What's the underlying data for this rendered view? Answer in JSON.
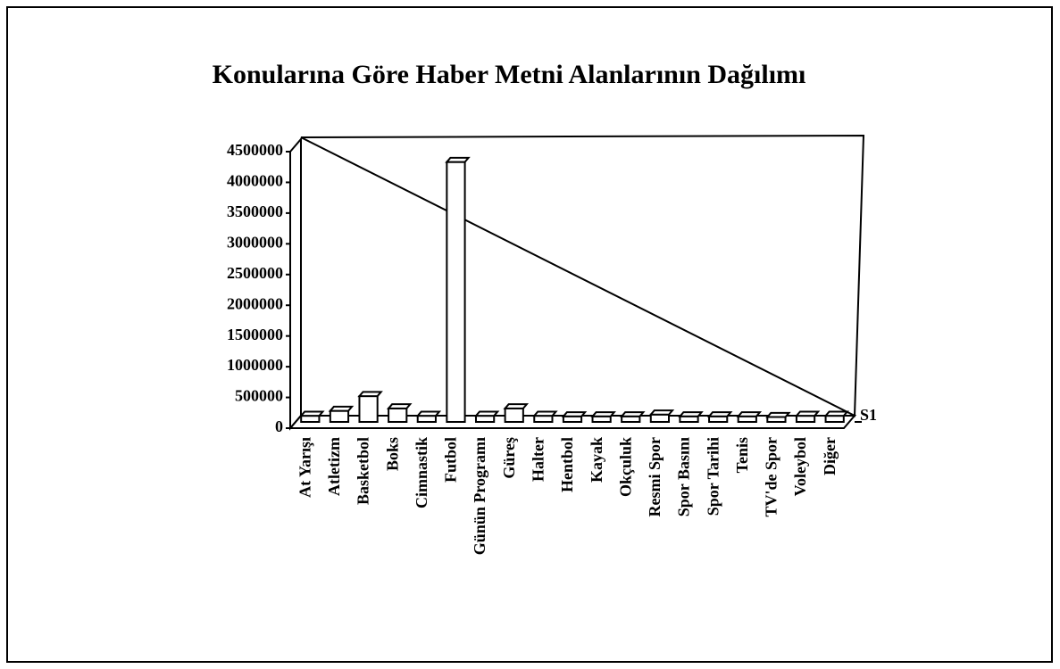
{
  "chart_data": {
    "type": "bar3d",
    "title": "Konularına Göre Haber Metni Alanlarının Dağılımı",
    "categories": [
      "At Yarışı",
      "Atletizm",
      "Basketbol",
      "Boks",
      "Cimnastik",
      "Futbol",
      "Günün Programı",
      "Güreş",
      "Halter",
      "Hentbol",
      "Kayak",
      "Okçuluk",
      "Resmi Spor",
      "Spor Basını",
      "Spor Tarihi",
      "Tenis",
      "TV'de Spor",
      "Voleybol",
      "Diğer"
    ],
    "series": [
      {
        "name": "S1",
        "color": "#ffffff",
        "values": [
          100000,
          180000,
          420000,
          220000,
          100000,
          4230000,
          100000,
          220000,
          100000,
          90000,
          90000,
          90000,
          120000,
          90000,
          90000,
          90000,
          80000,
          100000,
          100000
        ]
      }
    ],
    "ylim": [
      0,
      4500000
    ],
    "yticks": [
      0,
      500000,
      1000000,
      1500000,
      2000000,
      2500000,
      3000000,
      3500000,
      4000000,
      4500000
    ]
  }
}
